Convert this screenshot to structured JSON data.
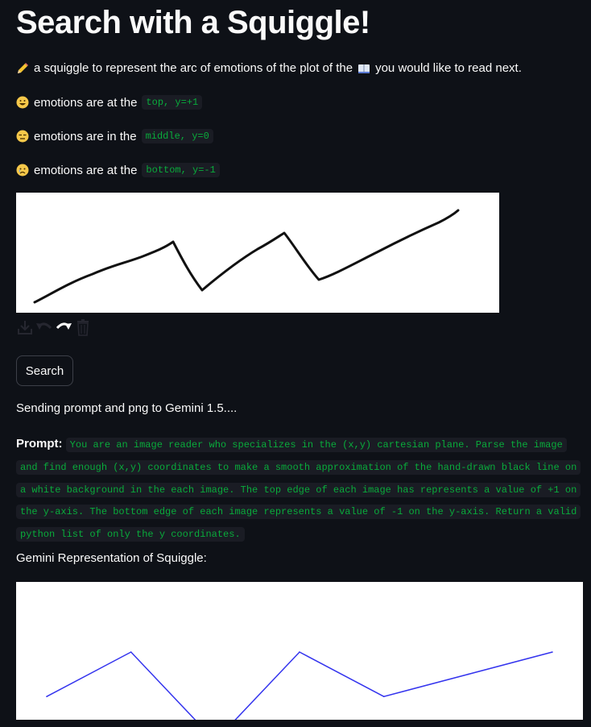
{
  "title": "Search with a Squiggle!",
  "intro": {
    "icon": "pencil-icon",
    "text_before": "a squiggle to represent the arc of emotions of the plot of the",
    "book_icon": "open-book-icon",
    "text_after": "you would like to read next."
  },
  "levels": [
    {
      "icon": "grinning-face-icon",
      "text": "emotions are at the",
      "code": "top, y=+1"
    },
    {
      "icon": "expressionless-face-icon",
      "text": "emotions are in the",
      "code": "middle, y=0"
    },
    {
      "icon": "sad-face-icon",
      "text": "emotions are at the",
      "code": "bottom, y=-1"
    }
  ],
  "toolbar": {
    "tools": [
      "download-icon",
      "undo-icon",
      "redo-icon",
      "trash-icon"
    ]
  },
  "search_button": "Search",
  "status": "Sending prompt and png to Gemini 1.5....",
  "prompt": {
    "label": "Prompt:",
    "text": "You are an image reader who specializes in the (x,y) cartesian plane. Parse the image and find enough (x,y) coordinates to make a smooth approximation of the hand-drawn black line on a white background in the each image. The top edge of each image has represents a value of +1 on the y-axis. The bottom edge of each image represents a value of -1 on the y-axis. Return a valid python list of only the y coordinates."
  },
  "result_title": "Gemini Representation of Squiggle:",
  "colors": {
    "background": "#0e1117",
    "code_text": "#09ab3b",
    "code_bg": "#1a1c24",
    "squiggle": "#111111",
    "gemini_line": "#3333ee"
  },
  "chart_data": {
    "type": "line",
    "x": [
      0,
      1,
      2,
      3,
      4,
      5,
      6
    ],
    "values": [
      -0.4,
      0.0,
      -0.8,
      0.0,
      -0.4,
      -0.2,
      0.0
    ],
    "ylim": [
      -1,
      1
    ],
    "grid": false
  }
}
